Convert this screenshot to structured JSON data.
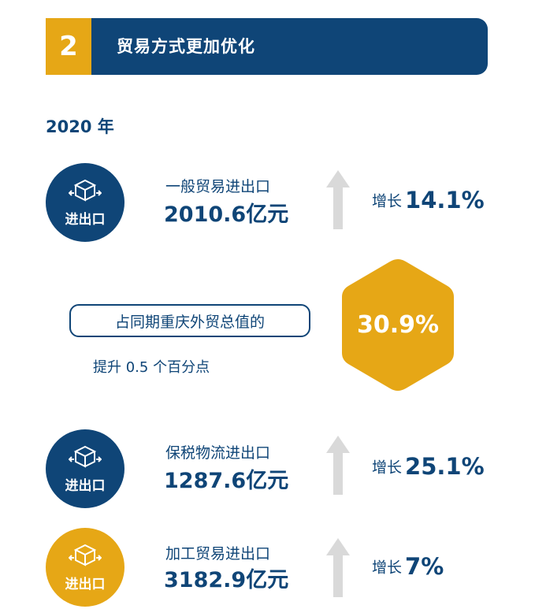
{
  "header": {
    "number": "2",
    "title": "贸易方式更加优化"
  },
  "year": "2020 年",
  "circle_label": "进出口",
  "items": [
    {
      "label": "一般贸易进出口",
      "value": "2010.6亿元",
      "growth_label": "增长",
      "growth_value": "14.1%",
      "circle_color": "blue"
    },
    {
      "label": "保税物流进出口",
      "value": "1287.6亿元",
      "growth_label": "增长",
      "growth_value": "25.1%",
      "circle_color": "blue"
    },
    {
      "label": "加工贸易进出口",
      "value": "3182.9亿元",
      "growth_label": "增长",
      "growth_value": "7%",
      "circle_color": "gold"
    }
  ],
  "share": {
    "box_text": "占同期重庆外贸总值的",
    "note": "提升 0.5 个百分点",
    "value": "30.9%"
  },
  "colors": {
    "navy": "#0f4577",
    "gold": "#e6a716",
    "arrow_gray": "#d9d9d9",
    "white": "#ffffff"
  },
  "icons": {
    "circle_icon": "package-box-arrows-icon",
    "growth_icon": "arrow-up-icon"
  }
}
